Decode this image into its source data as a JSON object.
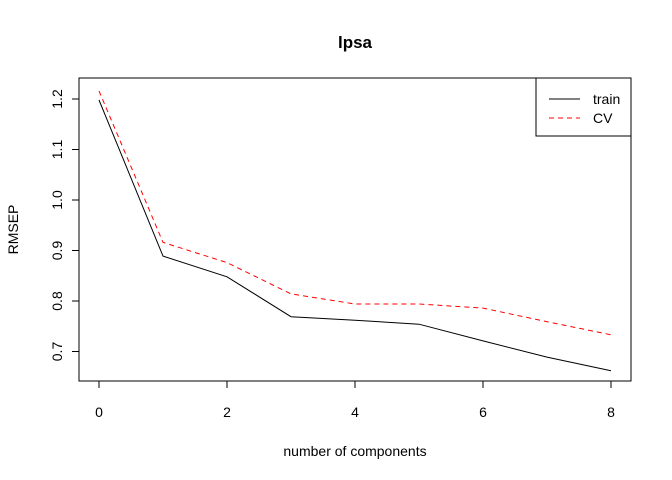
{
  "chart_data": {
    "type": "line",
    "title": "lpsa",
    "xlabel": "number of components",
    "ylabel": "RMSEP",
    "xlim": [
      0,
      8
    ],
    "ylim": [
      0.64,
      1.24
    ],
    "xticks": [
      0,
      2,
      4,
      6,
      8
    ],
    "yticks": [
      0.7,
      0.8,
      0.9,
      1.0,
      1.1,
      1.2
    ],
    "ytick_labels": [
      "0.7",
      "0.8",
      "0.9",
      "1.0",
      "1.1",
      "1.2"
    ],
    "x": [
      0,
      1,
      2,
      3,
      4,
      5,
      6,
      7,
      8
    ],
    "series": [
      {
        "name": "train",
        "color": "#000000",
        "linestyle": "solid",
        "values": [
          1.198,
          0.889,
          0.848,
          0.769,
          0.762,
          0.754,
          0.721,
          0.689,
          0.662
        ]
      },
      {
        "name": "CV",
        "color": "#ff0000",
        "linestyle": "dashed",
        "values": [
          1.216,
          0.916,
          0.876,
          0.814,
          0.794,
          0.794,
          0.786,
          0.759,
          0.733
        ]
      }
    ],
    "legend_position": "top-right",
    "grid": false
  }
}
